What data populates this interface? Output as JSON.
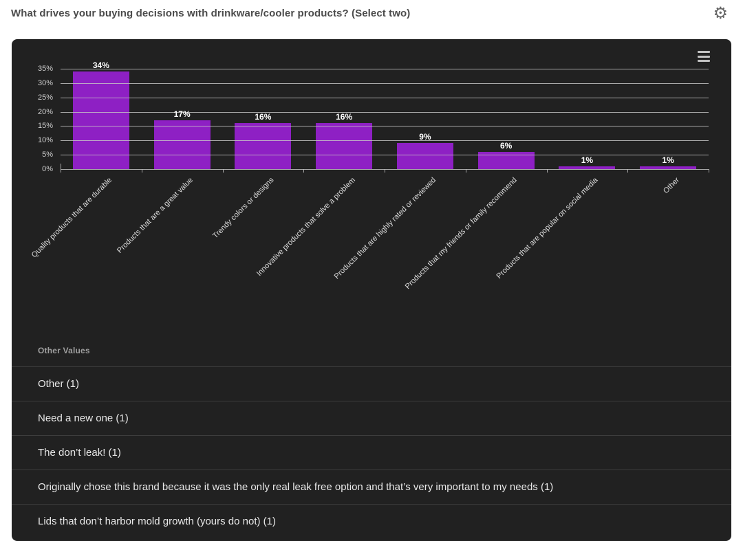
{
  "header": {
    "title": "What drives your buying decisions with drinkware/cooler products? (Select two)"
  },
  "icons": {
    "settings": "gear-icon",
    "chart_menu": "hamburger-menu-icon"
  },
  "colors": {
    "page_bg": "#ffffff",
    "panel_bg": "#212121",
    "bar": "#8e20c4",
    "grid": "#c6c6c6",
    "axis_text": "#cccccc",
    "value_label_text": "#ffffff",
    "table_header_text": "#9f9f9f",
    "table_row_text": "#e8e8e8",
    "divider": "#3d3d3d",
    "title_text": "#4b4b4b"
  },
  "chart_data": {
    "type": "bar",
    "title": "",
    "xlabel": "",
    "ylabel": "",
    "categories": [
      "Quality products that are durable",
      "Products that are a great value",
      "Trendy colors or designs",
      "Innovative products that solve a problem",
      "Products that are highly rated or reviewed",
      "Products that my friends or family recommend",
      "Products that are popular on social media",
      "Other"
    ],
    "values": [
      34,
      17,
      16,
      16,
      9,
      6,
      1,
      1
    ],
    "value_labels": [
      "34%",
      "17%",
      "16%",
      "16%",
      "9%",
      "6%",
      "1%",
      "1%"
    ],
    "ylim": [
      0,
      35
    ],
    "ytick_step": 5,
    "ytick_labels": [
      "0%",
      "5%",
      "10%",
      "15%",
      "20%",
      "25%",
      "30%",
      "35%"
    ],
    "grid": true,
    "legend_position": "none",
    "bar_color": "#8e20c4",
    "background": "#212121",
    "x_labels_rotation_deg": -45
  },
  "table": {
    "header": "Other Values",
    "rows": [
      "Other (1)",
      "Need a new one (1)",
      "The don’t leak! (1)",
      "Originally chose this brand because it was the only real leak free option and that’s very important to my needs (1)",
      "Lids that don’t harbor mold growth (yours do not) (1)"
    ]
  }
}
